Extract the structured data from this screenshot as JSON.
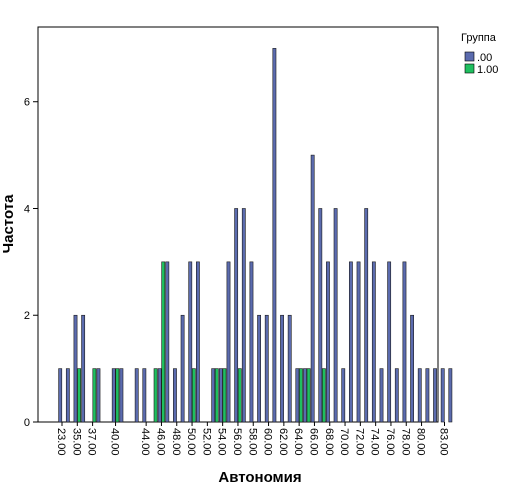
{
  "chart_data": {
    "type": "bar",
    "xlabel": "Автономия",
    "ylabel": "Частота",
    "ylim": [
      0,
      7.4
    ],
    "yticks": [
      0,
      2,
      4,
      6
    ],
    "x_tick_labels": [
      "23.00",
      "35.00",
      "37.00",
      "40.00",
      "44.00",
      "46.00",
      "48.00",
      "50.00",
      "52.00",
      "54.00",
      "56.00",
      "58.00",
      "60.00",
      "62.00",
      "64.00",
      "66.00",
      "68.00",
      "70.00",
      "72.00",
      "74.00",
      "76.00",
      "78.00",
      "80.00",
      "83.00"
    ],
    "legend": {
      "title": "Группа",
      "placement": "top-right"
    },
    "series": [
      {
        "name": ".00",
        "color": "#5b6bae",
        "points": [
          [
            23,
            1
          ],
          [
            34,
            1
          ],
          [
            35,
            2
          ],
          [
            36,
            2
          ],
          [
            38,
            1
          ],
          [
            40,
            1
          ],
          [
            41,
            1
          ],
          [
            43,
            1
          ],
          [
            44,
            1
          ],
          [
            46,
            1
          ],
          [
            47,
            3
          ],
          [
            48,
            1
          ],
          [
            49,
            2
          ],
          [
            50,
            3
          ],
          [
            51,
            3
          ],
          [
            53,
            1
          ],
          [
            54,
            1
          ],
          [
            55,
            3
          ],
          [
            56,
            4
          ],
          [
            57,
            4
          ],
          [
            58,
            3
          ],
          [
            59,
            2
          ],
          [
            60,
            2
          ],
          [
            61,
            7
          ],
          [
            62,
            2
          ],
          [
            63,
            2
          ],
          [
            64,
            1
          ],
          [
            65,
            1
          ],
          [
            66,
            5
          ],
          [
            67,
            4
          ],
          [
            68,
            3
          ],
          [
            69,
            4
          ],
          [
            70,
            1
          ],
          [
            71,
            3
          ],
          [
            72,
            3
          ],
          [
            73,
            4
          ],
          [
            74,
            3
          ],
          [
            75,
            1
          ],
          [
            76,
            3
          ],
          [
            77,
            1
          ],
          [
            78,
            3
          ],
          [
            79,
            2
          ],
          [
            80,
            1
          ],
          [
            81,
            1
          ],
          [
            82,
            1
          ],
          [
            83,
            1
          ],
          [
            84,
            1
          ]
        ]
      },
      {
        "name": "1.00",
        "color": "#1fbf5f",
        "points": [
          [
            35,
            1
          ],
          [
            37,
            1
          ],
          [
            40,
            1
          ],
          [
            45,
            1
          ],
          [
            46,
            3
          ],
          [
            50,
            1
          ],
          [
            53,
            1
          ],
          [
            54,
            1
          ],
          [
            56,
            1
          ],
          [
            64,
            1
          ],
          [
            65,
            1
          ],
          [
            67,
            1
          ]
        ]
      }
    ]
  }
}
